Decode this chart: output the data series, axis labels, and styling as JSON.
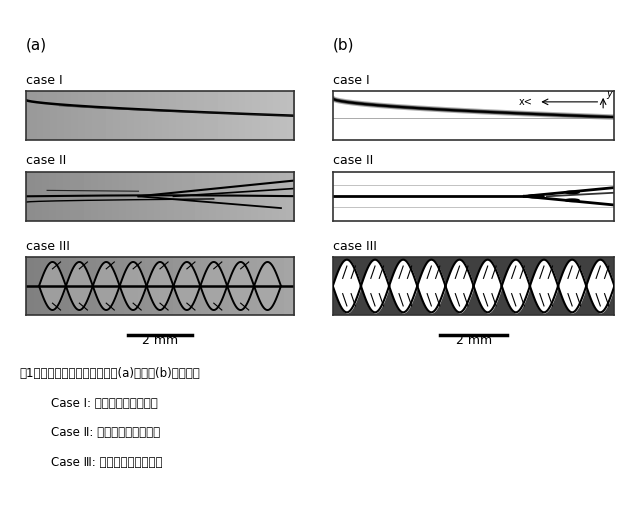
{
  "background_color": "#ffffff",
  "label_a": "(a)",
  "label_b": "(b)",
  "case_labels": [
    "case I",
    "case II",
    "case III"
  ],
  "caption_line1": "囱1化学強化ガラスの破壊　　(a)実験　(b)数値解析",
  "caption_line2": "Case Ⅰ: 残留応力レベル　低",
  "caption_line3": "Case Ⅱ: 残留応力レベル　中",
  "caption_line4": "Case Ⅲ: 残留応力レベル　高",
  "scalebar_label": "2 mm",
  "axis_x_label": "x<",
  "axis_y_label": "y",
  "gray_bg": "#b0b0b0",
  "gray_bg_dark": "#909090",
  "img_border": "#333333"
}
